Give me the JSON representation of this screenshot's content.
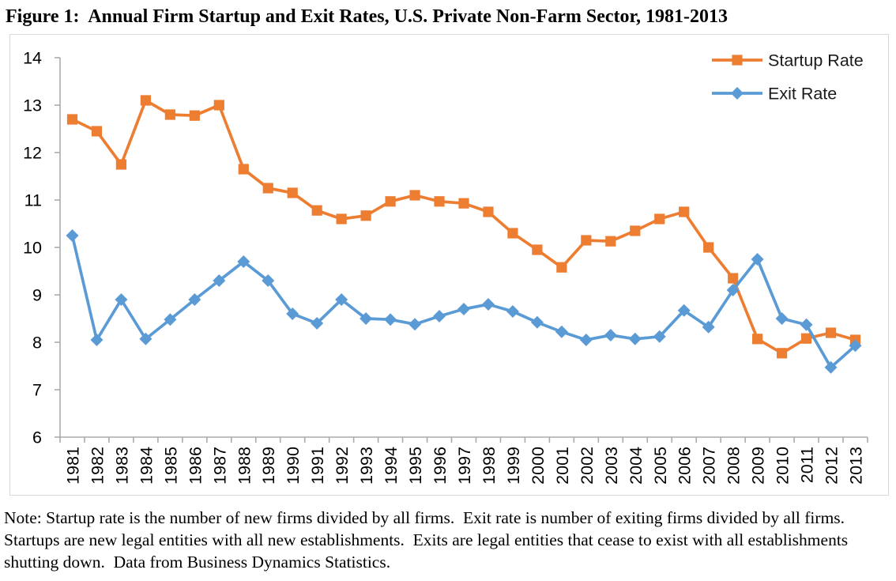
{
  "figure": {
    "title": "Figure 1:  Annual Firm Startup and Exit Rates, U.S. Private Non-Farm Sector, 1981-2013",
    "note": "Note: Startup rate is the number of new firms divided by all firms.  Exit rate is number of exiting firms divided by all firms.  Startups are new legal entities with all new establishments.  Exits are legal entities that cease to exist with all establishments shutting down.  Data from Business Dynamics Statistics."
  },
  "chart_data": {
    "type": "line",
    "title": "Figure 1:  Annual Firm Startup and Exit Rates, U.S. Private Non-Farm Sector, 1981-2013",
    "xlabel": "",
    "ylabel": "",
    "ylim": [
      6,
      14
    ],
    "ytick_step": 1,
    "grid": false,
    "legend_position": "top-right",
    "categories": [
      "1981",
      "1982",
      "1983",
      "1984",
      "1985",
      "1986",
      "1987",
      "1988",
      "1989",
      "1990",
      "1991",
      "1992",
      "1993",
      "1994",
      "1995",
      "1996",
      "1997",
      "1998",
      "1999",
      "2000",
      "2001",
      "2002",
      "2003",
      "2004",
      "2005",
      "2006",
      "2007",
      "2008",
      "2009",
      "2010",
      "2011",
      "2012",
      "2013"
    ],
    "series": [
      {
        "name": "Startup Rate",
        "marker": "square",
        "color": "#ED7D31",
        "values": [
          12.7,
          12.45,
          11.75,
          13.1,
          12.8,
          12.78,
          13.0,
          11.65,
          11.25,
          11.15,
          10.78,
          10.6,
          10.67,
          10.97,
          11.1,
          10.97,
          10.93,
          10.75,
          10.3,
          9.95,
          9.58,
          10.15,
          10.13,
          10.35,
          10.6,
          10.75,
          10.0,
          9.35,
          8.07,
          7.77,
          8.08,
          8.2,
          8.05
        ]
      },
      {
        "name": "Exit Rate",
        "marker": "diamond",
        "color": "#5B9BD5",
        "values": [
          10.25,
          8.05,
          8.9,
          8.07,
          8.48,
          8.9,
          9.3,
          9.7,
          9.3,
          8.6,
          8.4,
          8.9,
          8.5,
          8.48,
          8.38,
          8.55,
          8.7,
          8.8,
          8.65,
          8.42,
          8.22,
          8.05,
          8.15,
          8.07,
          8.12,
          8.67,
          8.32,
          9.1,
          9.75,
          8.5,
          8.37,
          7.47,
          7.93
        ]
      }
    ],
    "style": {
      "axis_color": "#ababab",
      "tick_label_color": "#000000",
      "legend_text_color": "#1a1a1a",
      "plot_border_color": "#d9d9d9"
    }
  }
}
